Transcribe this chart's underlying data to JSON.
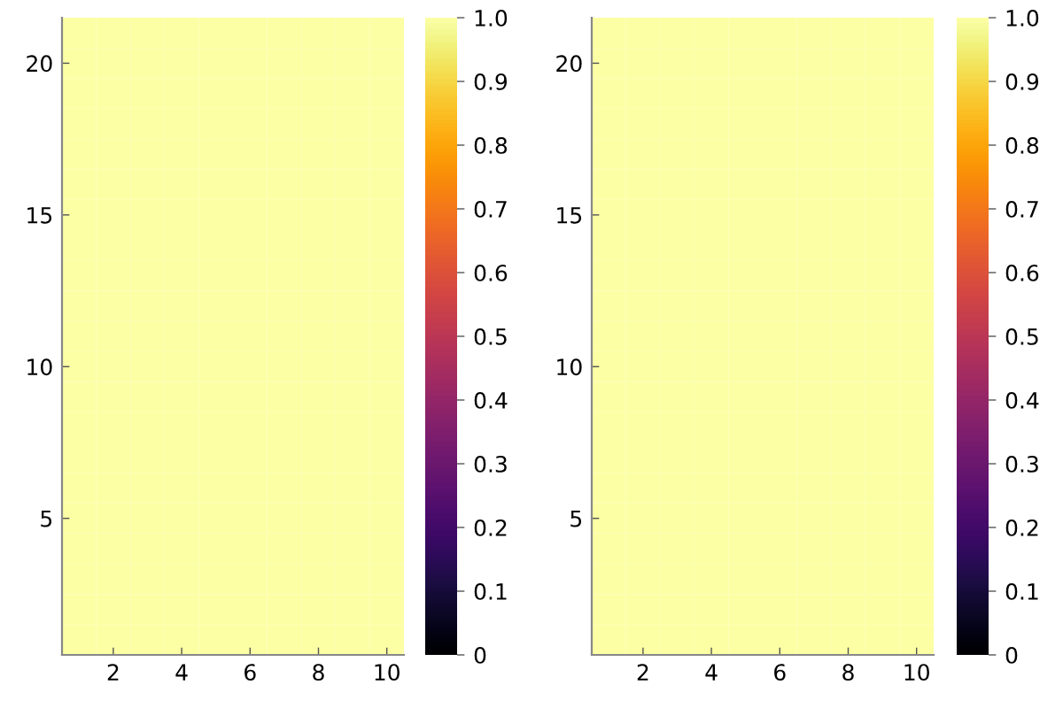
{
  "chart_data": [
    {
      "type": "heatmap",
      "categories": [
        null,
        "2",
        null,
        "4",
        null,
        "6",
        null,
        "8",
        null,
        "10"
      ],
      "y_categories": [
        null,
        "20",
        null,
        null,
        null,
        null,
        "15",
        null,
        null,
        null,
        null,
        "10",
        null,
        null,
        null,
        null,
        "5",
        null,
        null,
        null,
        null
      ],
      "cells": [
        [
          1,
          1,
          1,
          1,
          1,
          1,
          1,
          1,
          1,
          1
        ],
        [
          1,
          1,
          1,
          1,
          1,
          1,
          1,
          1,
          1,
          1
        ],
        [
          1,
          1,
          1,
          1,
          1,
          1,
          1,
          1,
          1,
          1
        ],
        [
          1,
          1,
          1,
          1,
          1,
          1,
          1,
          1,
          1,
          1
        ],
        [
          1,
          1,
          1,
          1,
          1,
          1,
          1,
          1,
          1,
          1
        ],
        [
          1,
          1,
          1,
          1,
          1,
          1,
          1,
          1,
          1,
          1
        ],
        [
          1,
          1,
          1,
          1,
          1,
          1,
          1,
          1,
          1,
          1
        ],
        [
          1,
          1,
          1,
          1,
          1,
          1,
          1,
          1,
          1,
          1
        ],
        [
          1,
          1,
          1,
          1,
          1,
          1,
          1,
          1,
          1,
          1
        ],
        [
          1,
          1,
          1,
          1,
          1,
          1,
          1,
          1,
          1,
          1
        ],
        [
          1,
          1,
          1,
          1,
          1,
          1,
          1,
          1,
          1,
          1
        ],
        [
          1,
          1,
          1,
          1,
          1,
          1,
          1,
          1,
          1,
          1
        ],
        [
          1,
          1,
          1,
          1,
          1,
          1,
          1,
          1,
          1,
          1
        ],
        [
          1,
          1,
          1,
          1,
          1,
          1,
          1,
          1,
          1,
          1
        ],
        [
          1,
          1,
          1,
          1,
          1,
          1,
          1,
          1,
          1,
          1
        ],
        [
          1,
          1,
          1,
          1,
          1,
          1,
          1,
          1,
          1,
          1
        ],
        [
          1,
          1,
          1,
          1,
          1,
          1,
          1,
          1,
          1,
          1
        ],
        [
          1,
          1,
          1,
          1,
          1,
          1,
          1,
          1,
          1,
          1
        ],
        [
          1,
          1,
          1,
          1,
          1,
          1,
          1,
          1,
          1,
          1
        ],
        [
          1,
          1,
          1,
          1,
          1,
          1,
          1,
          1,
          1,
          1
        ],
        [
          1,
          1,
          1,
          1,
          1,
          1,
          1,
          1,
          1,
          1
        ]
      ],
      "clim": [
        0,
        1
      ],
      "cticks": [
        0,
        0.1,
        0.2,
        0.3,
        0.4,
        0.5,
        0.6,
        0.7,
        0.8,
        0.9,
        {
          "value": 1,
          "label": "1.0"
        }
      ],
      "grid": false
    },
    {
      "type": "heatmap",
      "categories": [
        null,
        "2",
        null,
        "4",
        null,
        "6",
        null,
        "8",
        null,
        "10"
      ],
      "y_categories": [
        null,
        "20",
        null,
        null,
        null,
        null,
        "15",
        null,
        null,
        null,
        null,
        "10",
        null,
        null,
        null,
        null,
        "5",
        null,
        null,
        null,
        null
      ],
      "cells": [
        [
          1,
          1,
          1,
          1,
          1,
          1,
          1,
          1,
          1,
          1
        ],
        [
          1,
          1,
          1,
          1,
          1,
          1,
          1,
          1,
          1,
          1
        ],
        [
          1,
          1,
          1,
          1,
          1,
          1,
          1,
          1,
          1,
          1
        ],
        [
          1,
          1,
          1,
          1,
          1,
          1,
          1,
          1,
          1,
          1
        ],
        [
          1,
          1,
          1,
          1,
          1,
          1,
          1,
          1,
          1,
          1
        ],
        [
          1,
          1,
          1,
          1,
          1,
          1,
          1,
          1,
          1,
          1
        ],
        [
          1,
          1,
          1,
          1,
          1,
          1,
          1,
          1,
          1,
          1
        ],
        [
          1,
          1,
          1,
          1,
          1,
          1,
          1,
          1,
          1,
          1
        ],
        [
          1,
          1,
          1,
          1,
          1,
          1,
          1,
          1,
          1,
          1
        ],
        [
          1,
          1,
          1,
          1,
          1,
          1,
          1,
          1,
          1,
          1
        ],
        [
          1,
          1,
          1,
          1,
          1,
          1,
          1,
          1,
          1,
          1
        ],
        [
          1,
          1,
          1,
          1,
          1,
          1,
          1,
          1,
          1,
          1
        ],
        [
          1,
          1,
          1,
          1,
          1,
          1,
          1,
          1,
          1,
          1
        ],
        [
          1,
          1,
          1,
          1,
          1,
          1,
          1,
          1,
          1,
          1
        ],
        [
          1,
          1,
          1,
          1,
          1,
          1,
          1,
          1,
          1,
          1
        ],
        [
          1,
          1,
          1,
          1,
          1,
          1,
          1,
          1,
          1,
          1
        ],
        [
          1,
          1,
          1,
          1,
          1,
          1,
          1,
          1,
          1,
          1
        ],
        [
          1,
          1,
          1,
          1,
          1,
          1,
          1,
          1,
          1,
          1
        ],
        [
          1,
          1,
          1,
          1,
          1,
          1,
          1,
          1,
          1,
          1
        ],
        [
          1,
          1,
          1,
          1,
          1,
          1,
          1,
          1,
          1,
          1
        ],
        [
          1,
          1,
          1,
          1,
          1,
          1,
          1,
          1,
          1,
          1
        ]
      ],
      "clim": [
        0,
        1
      ],
      "cticks": [
        0,
        0.1,
        0.2,
        0.3,
        0.4,
        0.5,
        0.6,
        0.7,
        0.8,
        0.9,
        {
          "value": 1,
          "label": "1.0"
        }
      ],
      "grid": false
    }
  ]
}
